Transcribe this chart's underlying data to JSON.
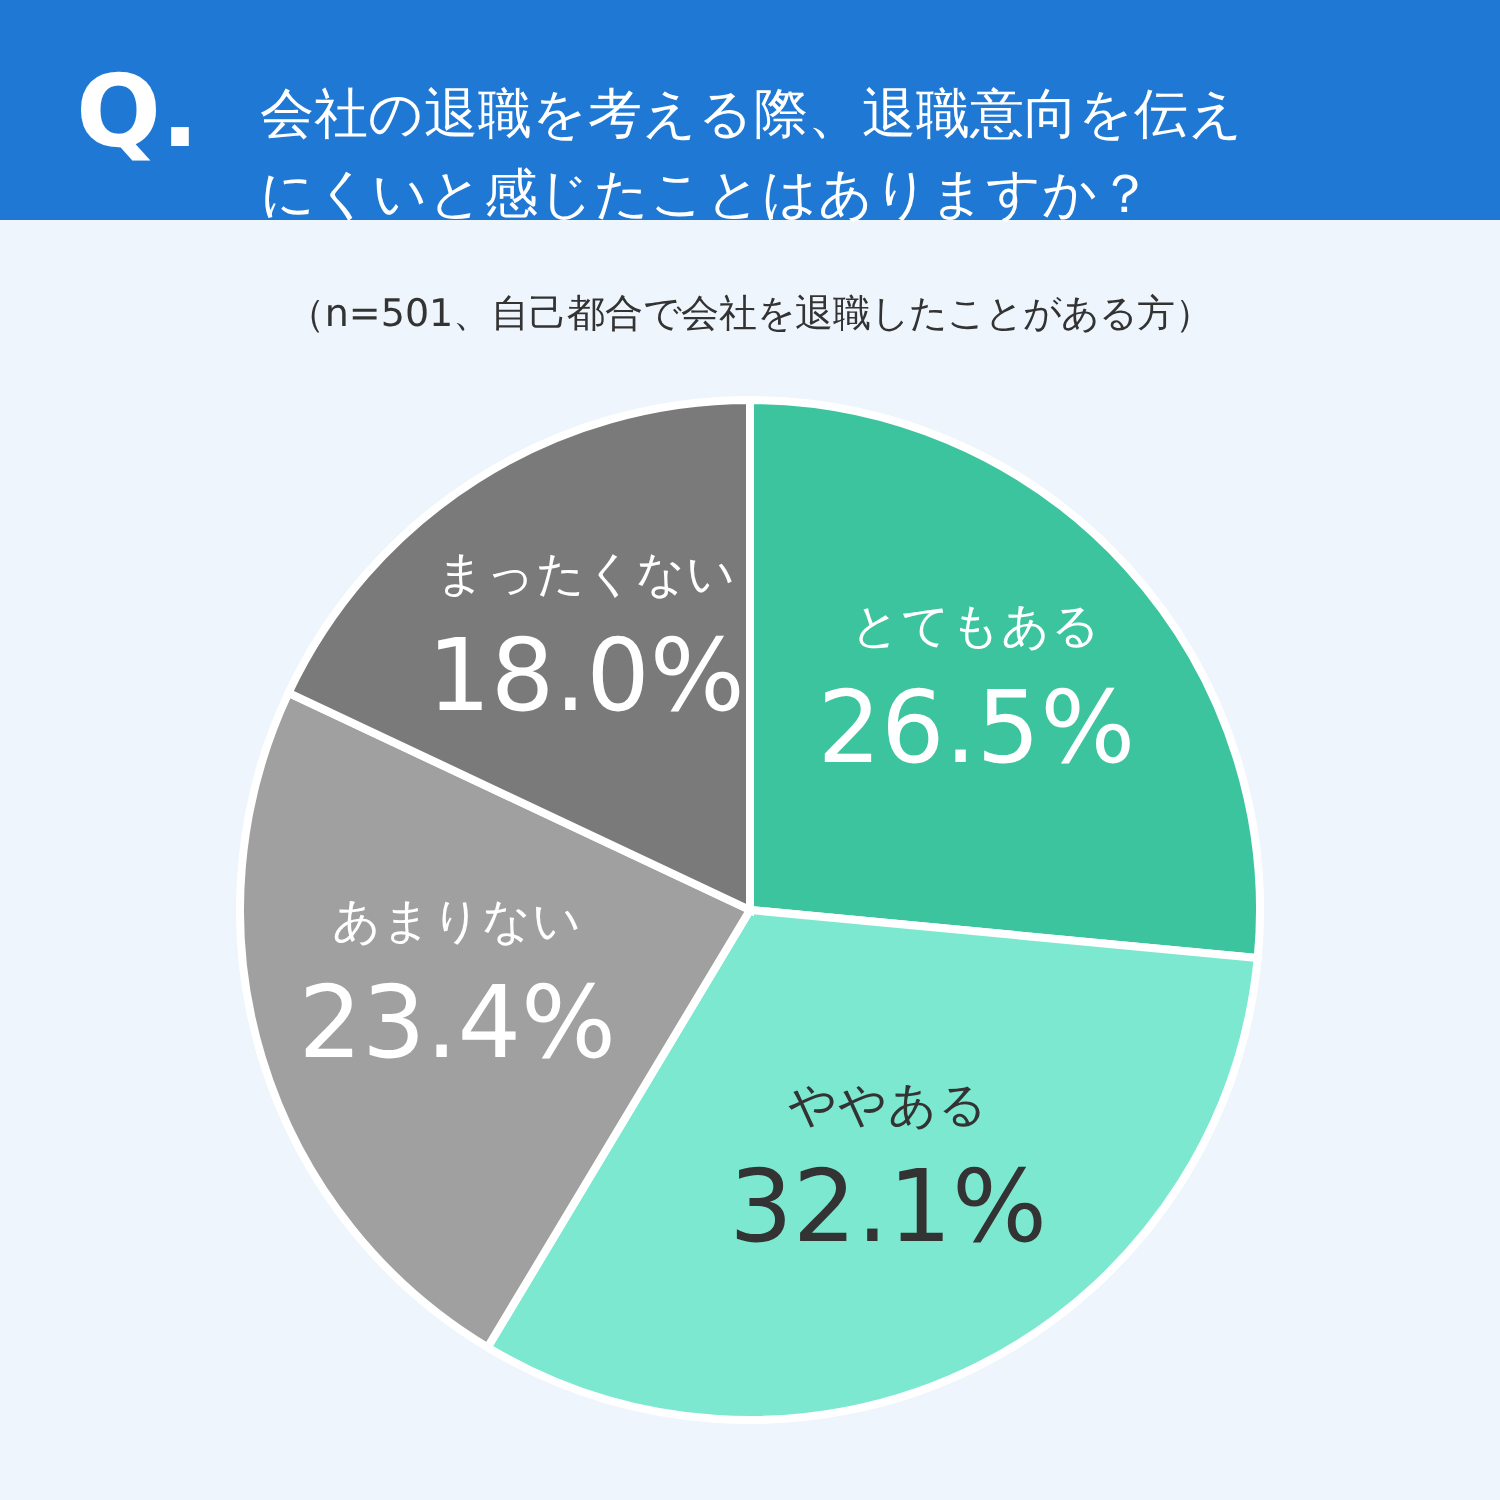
{
  "chart_data": {
    "type": "pie",
    "title": "Q. 会社の退職を考える際、退職意向を伝えにくいと感じたことはありますか？",
    "subtitle": "（n=501、自己都合で会社を退職したことがある方）",
    "categories": [
      "とてもある",
      "ややある",
      "あまりない",
      "まったくない"
    ],
    "values": [
      26.5,
      32.1,
      23.4,
      18.0
    ],
    "value_labels": [
      "26.5%",
      "32.1%",
      "23.4%",
      "18.0%"
    ],
    "colors": [
      "#3cc49e",
      "#7de8d0",
      "#a0a0a0",
      "#7a7a7a"
    ]
  }
}
